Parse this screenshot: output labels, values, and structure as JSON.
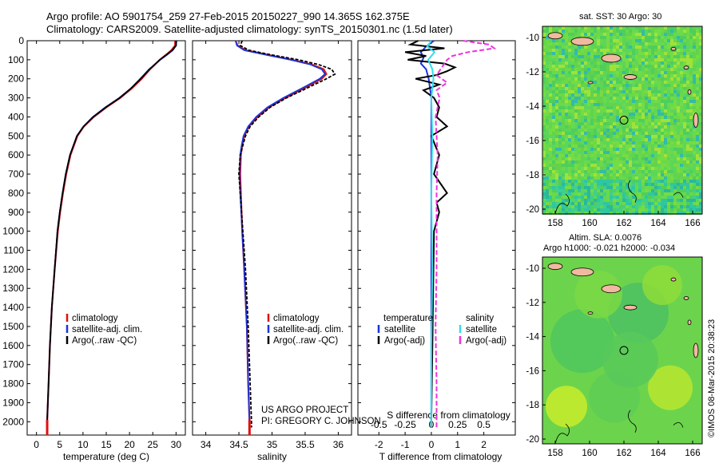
{
  "header": {
    "line1": "Argo profile: AO 5901754_259 27-Feb-2015 20150227_990 14.365S 162.375E",
    "line2": "Climatology: CARS2009. Satellite-adjusted climatology: synTS_20150301.nc (1.5d later)"
  },
  "colors": {
    "climatology": "#dd1111",
    "satellite": "#1a33dd",
    "argo": "#000000",
    "sal_satellite": "#33ddee",
    "sal_argo": "#ee33dd"
  },
  "chart_data": [
    {
      "type": "line",
      "panel": "temperature",
      "xlabel": "temperature (deg C)",
      "xticks": [
        0,
        5,
        10,
        15,
        20,
        25,
        30
      ],
      "xlim": [
        -2,
        32
      ],
      "yticks": [
        0,
        100,
        200,
        300,
        400,
        500,
        600,
        700,
        800,
        900,
        1000,
        1100,
        1200,
        1300,
        1400,
        1500,
        1600,
        1700,
        1800,
        1900,
        2000
      ],
      "ylim": [
        0,
        2070
      ],
      "y_reversed": true,
      "legend": [
        "climatology",
        "satellite-adj. clim.",
        "Argo(..raw -QC)"
      ],
      "series": [
        {
          "name": "climatology",
          "depth": [
            0,
            25,
            50,
            75,
            100,
            150,
            200,
            250,
            300,
            350,
            400,
            450,
            500,
            600,
            700,
            800,
            900,
            1000,
            1200,
            1400,
            1600,
            1800,
            2000,
            2030
          ],
          "values": [
            29.8,
            29.8,
            29.0,
            27.8,
            26.5,
            24.4,
            22.6,
            20.5,
            18.0,
            15.0,
            12.3,
            10.2,
            8.8,
            7.3,
            6.4,
            5.7,
            5.1,
            4.6,
            3.9,
            3.3,
            2.9,
            2.6,
            2.3,
            2.3
          ]
        },
        {
          "name": "satellite-adj. clim.",
          "depth": [
            0,
            25,
            50,
            75,
            100,
            150,
            200,
            250,
            300,
            350,
            400,
            450,
            500,
            600,
            700,
            800,
            900,
            1000,
            1200,
            1400,
            1600,
            1800,
            2000,
            2030
          ],
          "values": [
            30.1,
            30.0,
            29.3,
            28.0,
            26.6,
            24.2,
            22.3,
            20.3,
            17.8,
            14.8,
            12.1,
            10.1,
            8.7,
            7.2,
            6.3,
            5.6,
            5.0,
            4.5,
            3.9,
            3.3,
            2.9,
            2.6,
            2.3,
            2.3
          ]
        },
        {
          "name": "Argo(..raw -QC)",
          "depth": [
            0,
            25,
            50,
            75,
            100,
            150,
            200,
            250,
            300,
            350,
            400,
            450,
            500,
            600,
            700,
            800,
            900,
            1000,
            1200,
            1400,
            1600,
            1800,
            2000,
            2030
          ],
          "values": [
            30.0,
            30.0,
            29.2,
            27.9,
            26.5,
            24.3,
            22.4,
            20.3,
            17.9,
            14.9,
            12.2,
            10.1,
            8.7,
            7.2,
            6.3,
            5.6,
            5.0,
            4.5,
            3.9,
            3.3,
            2.9,
            2.6,
            2.3,
            2.3
          ]
        }
      ]
    },
    {
      "type": "line",
      "panel": "salinity",
      "xlabel": "salinity",
      "xticks": [
        34,
        34.5,
        35,
        35.5,
        36
      ],
      "xlim": [
        33.8,
        36.2
      ],
      "ylim": [
        0,
        2070
      ],
      "y_reversed": true,
      "legend": [
        "climatology",
        "satellite-adj. clim.",
        "Argo(..raw -QC)"
      ],
      "series": [
        {
          "name": "climatology",
          "depth": [
            0,
            25,
            50,
            75,
            100,
            125,
            150,
            175,
            200,
            250,
            300,
            350,
            400,
            450,
            500,
            550,
            600,
            700,
            800,
            1000,
            1200,
            1500,
            1800,
            2000,
            2030
          ],
          "values": [
            34.45,
            34.48,
            34.6,
            34.95,
            35.3,
            35.6,
            35.78,
            35.82,
            35.75,
            35.48,
            35.2,
            34.95,
            34.78,
            34.65,
            34.58,
            34.55,
            34.53,
            34.52,
            34.53,
            34.55,
            34.58,
            34.62,
            34.64,
            34.66,
            34.66
          ]
        },
        {
          "name": "satellite-adj. clim.",
          "depth": [
            0,
            25,
            50,
            75,
            100,
            125,
            150,
            175,
            200,
            250,
            300,
            350,
            400,
            450,
            500,
            550,
            600,
            700,
            800,
            1000,
            1200,
            1500,
            1800,
            2000,
            2030
          ],
          "values": [
            34.45,
            34.47,
            34.58,
            34.92,
            35.28,
            35.58,
            35.75,
            35.8,
            35.72,
            35.45,
            35.17,
            34.93,
            34.76,
            34.64,
            34.57,
            34.54,
            34.52,
            34.51,
            34.52,
            34.55,
            34.58,
            34.62,
            34.64,
            34.66,
            34.66
          ]
        },
        {
          "name": "Argo(..raw -QC)",
          "depth": [
            0,
            25,
            50,
            75,
            100,
            125,
            150,
            175,
            200,
            250,
            300,
            350,
            400,
            450,
            500,
            550,
            600,
            700,
            800,
            1000,
            1200,
            1500,
            1800,
            2000,
            2030
          ],
          "values": [
            34.55,
            34.52,
            34.65,
            35.0,
            35.4,
            35.7,
            35.9,
            35.95,
            35.82,
            35.52,
            35.22,
            34.97,
            34.8,
            34.67,
            34.6,
            34.56,
            34.52,
            34.5,
            34.52,
            34.56,
            34.6,
            34.64,
            34.67,
            34.69,
            34.69
          ]
        }
      ]
    },
    {
      "type": "line",
      "panel": "difference",
      "xlabel_bottom": "T difference from climatology",
      "xticks_bottom": [
        -2,
        -1,
        0,
        1,
        2
      ],
      "xlim_bottom": [
        -2.8,
        3.2
      ],
      "xlabel_top": "S difference from climatology",
      "xticks_top": [
        -0.5,
        -0.25,
        0,
        0.25,
        0.5
      ],
      "ylim": [
        0,
        2070
      ],
      "y_reversed": true,
      "legend_left_title": "temperature",
      "legend_right_title": "salinity",
      "legend": [
        "satellite",
        "Argo(-adj)",
        "satellite",
        "Argo(-adj)"
      ],
      "series": [
        {
          "name": "satellite",
          "kind": "T",
          "depth": [
            0,
            30,
            60,
            90,
            120,
            150,
            200,
            300,
            400,
            600,
            800,
            1000,
            1500,
            2000,
            2030
          ],
          "values": [
            0.1,
            -0.2,
            -0.4,
            -0.3,
            -0.4,
            -0.2,
            -0.1,
            0.0,
            0.0,
            0.0,
            0.0,
            0.0,
            0.0,
            0.0,
            0.0
          ]
        },
        {
          "name": "Argo(-adj)",
          "kind": "T",
          "depth": [
            0,
            20,
            40,
            60,
            80,
            100,
            120,
            140,
            160,
            180,
            200,
            230,
            260,
            300,
            350,
            400,
            450,
            500,
            600,
            700,
            800,
            850,
            900,
            1000,
            1500,
            2000,
            2030
          ],
          "values": [
            -0.5,
            -0.8,
            0.5,
            -1.0,
            -0.2,
            -0.9,
            0.5,
            0.9,
            0.6,
            0.2,
            -0.6,
            0.3,
            -0.3,
            0.1,
            0.3,
            0.2,
            0.6,
            0.0,
            0.3,
            0.1,
            0.6,
            0.2,
            0.3,
            0.1,
            0.05,
            0.0,
            0.0
          ]
        },
        {
          "name": "satellite",
          "kind": "S",
          "depth": [
            0,
            30,
            60,
            100,
            150,
            200,
            300,
            500,
            800,
            1200,
            1600,
            2000,
            2030
          ],
          "values": [
            0.0,
            -0.04,
            0.03,
            -0.03,
            0.01,
            0.02,
            0.0,
            0.01,
            0.0,
            0.01,
            0.0,
            0.0,
            0.0
          ]
        },
        {
          "name": "Argo(-adj)",
          "kind": "S",
          "depth": [
            0,
            20,
            40,
            60,
            80,
            100,
            140,
            180,
            220,
            260,
            300,
            400,
            500,
            600,
            800,
            1000,
            1200,
            1500,
            1800,
            2000,
            2030
          ],
          "values": [
            0.3,
            0.55,
            0.6,
            0.35,
            0.2,
            0.15,
            0.1,
            0.05,
            0.15,
            0.05,
            0.08,
            0.04,
            0.05,
            0.06,
            0.05,
            0.05,
            0.05,
            0.04,
            0.05,
            0.05,
            0.05
          ]
        }
      ]
    }
  ],
  "annotations": {
    "project": "US ARGO PROJECT",
    "pi": "PI: GREGORY C. JOHNSON",
    "copyright": "©IMOS 08-Mar-2015 20:38:23"
  },
  "maps": {
    "sst": {
      "title": "sat. SST: 30 Argo: 30",
      "lon_ticks": [
        "158",
        "160",
        "162",
        "164",
        "166"
      ],
      "lat_ticks": [
        "-10",
        "-12",
        "-14",
        "-16",
        "-18",
        "-20"
      ]
    },
    "sla": {
      "title1": "Altim. SLA: 0.0076",
      "title2": "Argo h1000: -0.021 h2000: -0.034",
      "lon_ticks": [
        "158",
        "160",
        "162",
        "164",
        "166"
      ],
      "lat_ticks": [
        "-10",
        "-12",
        "-14",
        "-16",
        "-18",
        "-20"
      ]
    }
  }
}
